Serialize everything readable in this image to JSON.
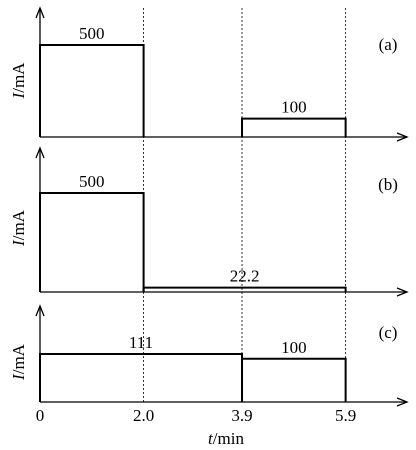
{
  "chart_data": [
    {
      "type": "step",
      "panel_label": "(a)",
      "ylabel_symbol": "I",
      "ylabel_unit": "/mA",
      "segments": [
        {
          "t_start": 0,
          "t_end": 2.0,
          "current": 500,
          "label": "500"
        },
        {
          "t_start": 3.9,
          "t_end": 5.9,
          "current": 100,
          "label": "100"
        }
      ]
    },
    {
      "type": "step",
      "panel_label": "(b)",
      "ylabel_symbol": "I",
      "ylabel_unit": "/mA",
      "segments": [
        {
          "t_start": 0,
          "t_end": 2.0,
          "current": 500,
          "label": "500"
        },
        {
          "t_start": 2.0,
          "t_end": 5.9,
          "current": 22.2,
          "label": "22.2"
        }
      ]
    },
    {
      "type": "step",
      "panel_label": "(c)",
      "ylabel_symbol": "I",
      "ylabel_unit": "/mA",
      "segments": [
        {
          "t_start": 0,
          "t_end": 3.9,
          "current": 111,
          "label": "111"
        },
        {
          "t_start": 3.9,
          "t_end": 5.9,
          "current": 100,
          "label": "100"
        }
      ]
    }
  ],
  "x_axis": {
    "label_symbol": "t",
    "label_unit": "/min",
    "ticks": [
      {
        "value": 0,
        "label": "0"
      },
      {
        "value": 2.0,
        "label": "2.0"
      },
      {
        "value": 3.9,
        "label": "3.9"
      },
      {
        "value": 5.9,
        "label": "5.9"
      }
    ]
  },
  "colors": {
    "line": "#000000",
    "background": "#ffffff"
  }
}
